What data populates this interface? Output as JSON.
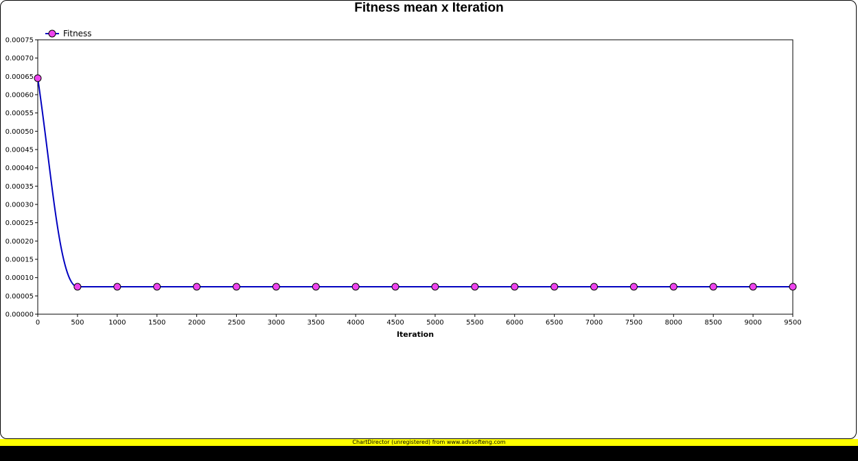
{
  "chart_data": {
    "type": "line",
    "title": "Fitness mean x Iteration",
    "xlabel": "Iteration",
    "ylabel": "",
    "xlim": [
      0,
      9500
    ],
    "ylim": [
      0,
      0.00075
    ],
    "x_ticks": [
      "0",
      "500",
      "1000",
      "1500",
      "2000",
      "2500",
      "3000",
      "3500",
      "4000",
      "4500",
      "5000",
      "5500",
      "6000",
      "6500",
      "7000",
      "7500",
      "8000",
      "8500",
      "9000",
      "9500"
    ],
    "y_ticks": [
      "0.00000",
      "0.00005",
      "0.00010",
      "0.00015",
      "0.00020",
      "0.00025",
      "0.00030",
      "0.00035",
      "0.00040",
      "0.00045",
      "0.00050",
      "0.00055",
      "0.00060",
      "0.00065",
      "0.00070",
      "0.00075"
    ],
    "legend_position": "top-left",
    "grid": false,
    "series": [
      {
        "name": "Fitness",
        "line_color": "#0000c0",
        "marker_color": "#ee44ee",
        "x": [
          0,
          500,
          1000,
          1500,
          2000,
          2500,
          3000,
          3500,
          4000,
          4500,
          5000,
          5500,
          6000,
          6500,
          7000,
          7500,
          8000,
          8500,
          9000,
          9500
        ],
        "values": [
          0.000645,
          7.5e-05,
          7.5e-05,
          7.5e-05,
          7.5e-05,
          7.5e-05,
          7.5e-05,
          7.5e-05,
          7.5e-05,
          7.5e-05,
          7.5e-05,
          7.5e-05,
          7.5e-05,
          7.5e-05,
          7.5e-05,
          7.5e-05,
          7.5e-05,
          7.5e-05,
          7.5e-05,
          7.5e-05
        ]
      }
    ]
  },
  "footer": {
    "text": "ChartDirector (unregistered) from www.advsofteng.com",
    "color": "#ffff00"
  }
}
